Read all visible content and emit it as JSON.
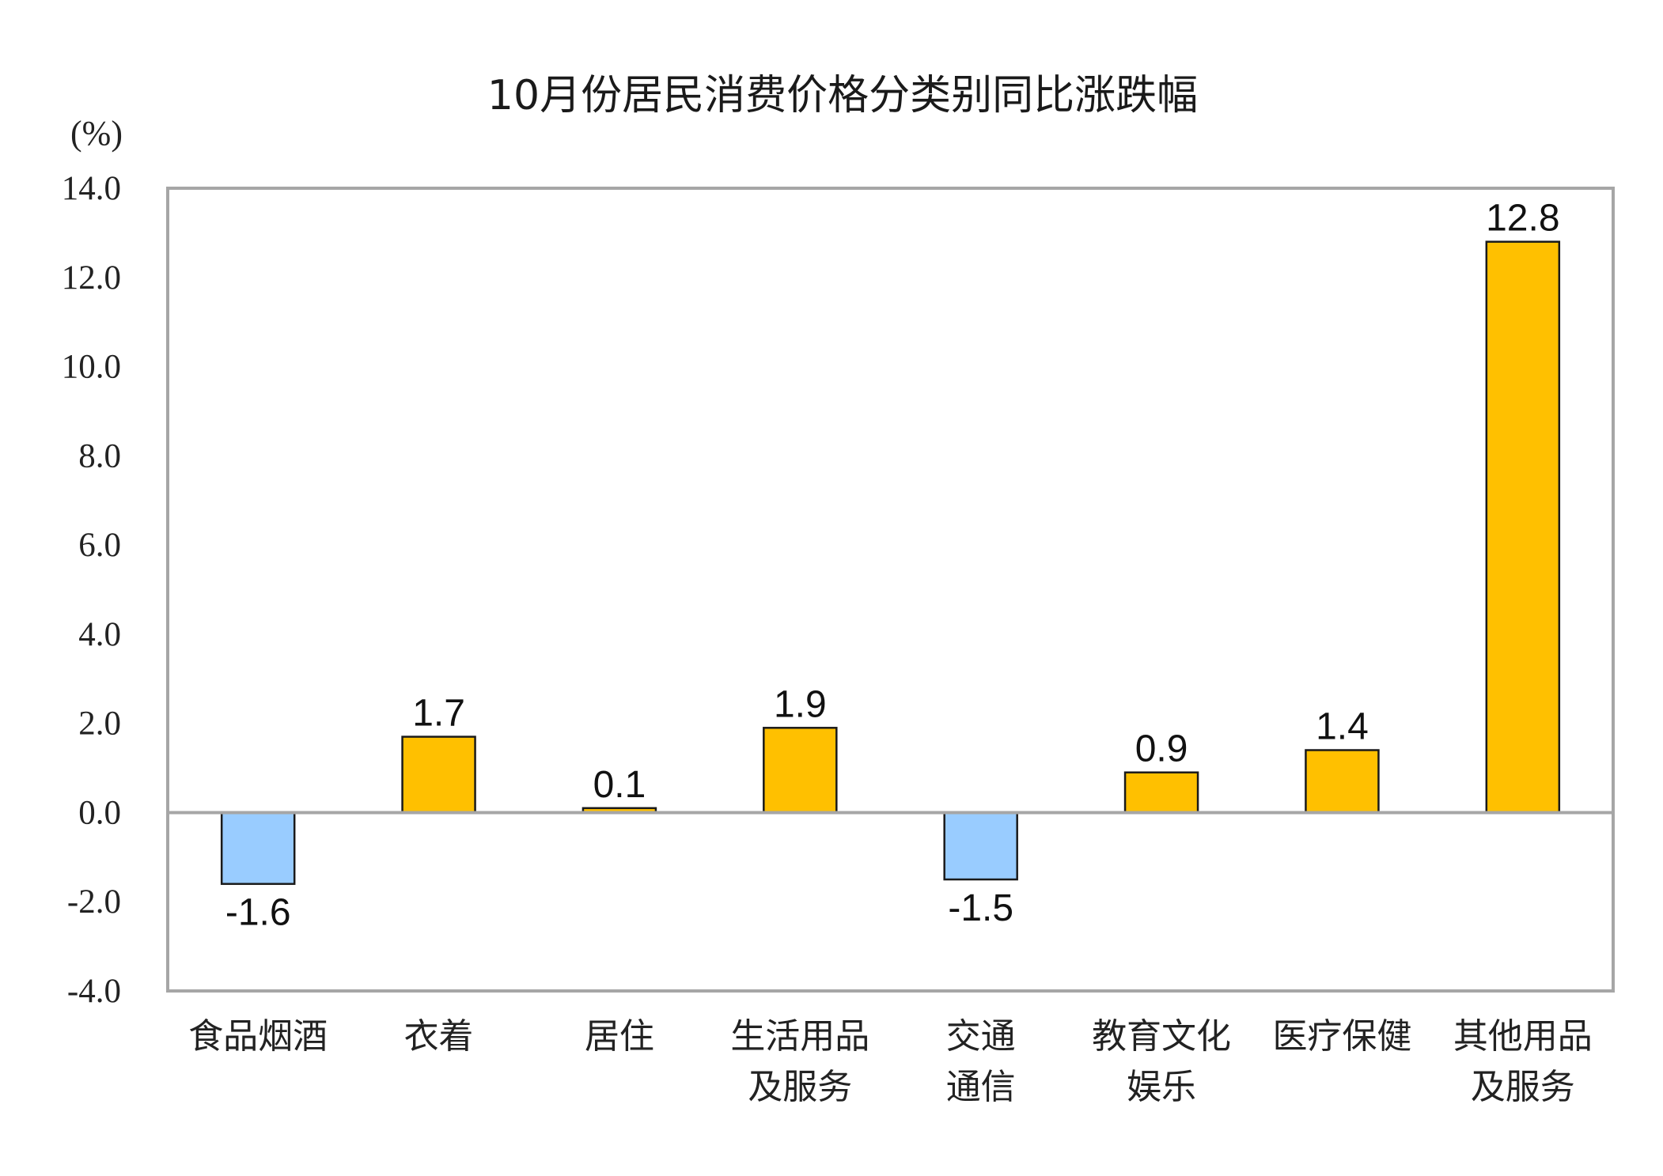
{
  "chart_data": {
    "type": "bar",
    "title": "10月份居民消费价格分类别同比涨跌幅",
    "ylabel": "(%)",
    "xlabel": "",
    "ylim": [
      -4.0,
      14.0
    ],
    "yticks": [
      "14.0",
      "12.0",
      "10.0",
      "8.0",
      "6.0",
      "4.0",
      "2.0",
      "0.0",
      "-2.0",
      "-4.0"
    ],
    "categories": [
      [
        "食品烟酒"
      ],
      [
        "衣着"
      ],
      [
        "居住"
      ],
      [
        "生活用品",
        "及服务"
      ],
      [
        "交通",
        "通信"
      ],
      [
        "教育文化",
        "娱乐"
      ],
      [
        "医疗保健"
      ],
      [
        "其他用品",
        "及服务"
      ]
    ],
    "values": [
      -1.6,
      1.7,
      0.1,
      1.9,
      -1.5,
      0.9,
      1.4,
      12.8
    ],
    "data_labels": [
      "-1.6",
      "1.7",
      "0.1",
      "1.9",
      "-1.5",
      "0.9",
      "1.4",
      "12.8"
    ],
    "colors": {
      "positive": "#FFC000",
      "negative": "#99CCFF",
      "border": "#1a1a1a",
      "axis": "#a6a6a6"
    },
    "grid": false,
    "legend": "none"
  }
}
